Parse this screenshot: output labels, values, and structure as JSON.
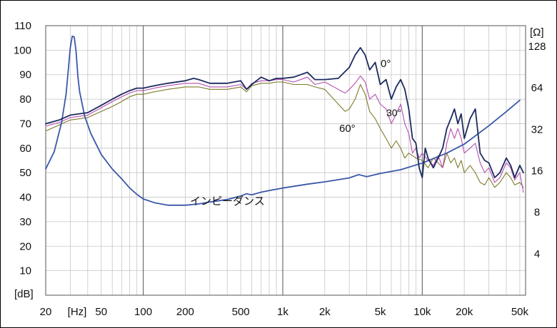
{
  "chart_data": {
    "type": "line",
    "x_axis": {
      "scale": "log",
      "range": [
        20,
        55000
      ],
      "unit": "[Hz]",
      "tick_labels": [
        {
          "value": 20,
          "label": "20"
        },
        {
          "value": 50,
          "label": "50"
        },
        {
          "value": 100,
          "label": "100"
        },
        {
          "value": 200,
          "label": "200"
        },
        {
          "value": 500,
          "label": "500"
        },
        {
          "value": 1000,
          "label": "1k"
        },
        {
          "value": 2000,
          "label": "2k"
        },
        {
          "value": 5000,
          "label": "5k"
        },
        {
          "value": 10000,
          "label": "10k"
        },
        {
          "value": 20000,
          "label": "20k"
        },
        {
          "value": 50000,
          "label": "50k"
        }
      ]
    },
    "y_axis_left": {
      "unit": "[dB]",
      "range": [
        0,
        110
      ],
      "tick_labels": [
        {
          "value": 110,
          "label": "110"
        },
        {
          "value": 100,
          "label": "100"
        },
        {
          "value": 90,
          "label": "90"
        },
        {
          "value": 80,
          "label": "80"
        },
        {
          "value": 70,
          "label": "70"
        },
        {
          "value": 60,
          "label": "60"
        },
        {
          "value": 50,
          "label": "50"
        },
        {
          "value": 40,
          "label": "40"
        },
        {
          "value": 30,
          "label": "30"
        },
        {
          "value": 20,
          "label": "20"
        },
        {
          "value": 10,
          "label": "10"
        }
      ]
    },
    "y_axis_right": {
      "unit": "[Ω]",
      "scale": "log2",
      "range": [
        2,
        181
      ],
      "tick_labels": [
        {
          "value": 128,
          "label": "128"
        },
        {
          "value": 64,
          "label": "64"
        },
        {
          "value": 32,
          "label": "32"
        },
        {
          "value": 16,
          "label": "16"
        },
        {
          "value": 8,
          "label": "8"
        },
        {
          "value": 4,
          "label": "4"
        }
      ]
    },
    "grid": true,
    "annotations": [
      {
        "text": "0°",
        "series": "on_axis"
      },
      {
        "text": "30°",
        "series": "off_axis_30"
      },
      {
        "text": "60°",
        "series": "off_axis_60"
      },
      {
        "text": "インピーダンス",
        "series": "impedance"
      }
    ],
    "series": [
      {
        "key": "on_axis",
        "axis": "left",
        "color": "#1c2a5e",
        "points": [
          [
            20,
            70
          ],
          [
            25,
            71.5
          ],
          [
            30,
            73.5
          ],
          [
            40,
            74.5
          ],
          [
            50,
            77.5
          ],
          [
            60,
            80
          ],
          [
            70,
            82
          ],
          [
            80,
            83.5
          ],
          [
            90,
            84.5
          ],
          [
            100,
            84.5
          ],
          [
            120,
            85.5
          ],
          [
            150,
            86.5
          ],
          [
            200,
            87.5
          ],
          [
            230,
            88.5
          ],
          [
            250,
            88
          ],
          [
            300,
            86.5
          ],
          [
            400,
            86.5
          ],
          [
            500,
            87.5
          ],
          [
            550,
            84
          ],
          [
            600,
            86
          ],
          [
            700,
            89
          ],
          [
            800,
            87.5
          ],
          [
            900,
            88.5
          ],
          [
            1000,
            88.5
          ],
          [
            1200,
            89
          ],
          [
            1500,
            91
          ],
          [
            1700,
            88
          ],
          [
            2000,
            88
          ],
          [
            2500,
            88.5
          ],
          [
            3000,
            93
          ],
          [
            3300,
            98
          ],
          [
            3600,
            101
          ],
          [
            3900,
            98
          ],
          [
            4200,
            92
          ],
          [
            4600,
            95
          ],
          [
            5000,
            86
          ],
          [
            5500,
            88
          ],
          [
            6000,
            80
          ],
          [
            6500,
            85
          ],
          [
            7000,
            88
          ],
          [
            7500,
            84
          ],
          [
            8000,
            76
          ],
          [
            8500,
            64
          ],
          [
            9000,
            62
          ],
          [
            9500,
            52
          ],
          [
            10000,
            48
          ],
          [
            10500,
            60
          ],
          [
            11000,
            56
          ],
          [
            12000,
            52
          ],
          [
            13000,
            56
          ],
          [
            14000,
            60
          ],
          [
            15000,
            68
          ],
          [
            16000,
            72
          ],
          [
            17000,
            76
          ],
          [
            18000,
            70
          ],
          [
            19000,
            74
          ],
          [
            20000,
            64
          ],
          [
            22000,
            72
          ],
          [
            24000,
            76
          ],
          [
            26000,
            58
          ],
          [
            28000,
            55
          ],
          [
            30000,
            54
          ],
          [
            33000,
            48
          ],
          [
            36000,
            50
          ],
          [
            40000,
            56
          ],
          [
            43000,
            53
          ],
          [
            46000,
            48
          ],
          [
            50000,
            53
          ],
          [
            53000,
            50
          ]
        ]
      },
      {
        "key": "off_axis_30",
        "axis": "left",
        "color": "#b44fb0",
        "points": [
          [
            20,
            69
          ],
          [
            25,
            70.5
          ],
          [
            30,
            72.5
          ],
          [
            40,
            73.5
          ],
          [
            50,
            76.5
          ],
          [
            60,
            79
          ],
          [
            70,
            81
          ],
          [
            80,
            82.5
          ],
          [
            90,
            83.5
          ],
          [
            100,
            83.5
          ],
          [
            120,
            84.5
          ],
          [
            150,
            85.5
          ],
          [
            200,
            86.5
          ],
          [
            250,
            86.5
          ],
          [
            300,
            85
          ],
          [
            400,
            85
          ],
          [
            500,
            86
          ],
          [
            550,
            84
          ],
          [
            600,
            86.5
          ],
          [
            700,
            87.5
          ],
          [
            800,
            87.5
          ],
          [
            900,
            88
          ],
          [
            1000,
            88
          ],
          [
            1200,
            87
          ],
          [
            1500,
            89
          ],
          [
            1700,
            86
          ],
          [
            2000,
            87
          ],
          [
            2500,
            84
          ],
          [
            2800,
            82.5
          ],
          [
            3000,
            84
          ],
          [
            3300,
            86.5
          ],
          [
            3600,
            89.5
          ],
          [
            3900,
            87
          ],
          [
            4200,
            80
          ],
          [
            4600,
            82
          ],
          [
            5000,
            78
          ],
          [
            5500,
            76
          ],
          [
            6000,
            70
          ],
          [
            6500,
            74
          ],
          [
            7000,
            78
          ],
          [
            7500,
            70
          ],
          [
            8000,
            66
          ],
          [
            8500,
            58
          ],
          [
            9000,
            60
          ],
          [
            9500,
            56
          ],
          [
            10000,
            58
          ],
          [
            11000,
            55
          ],
          [
            12000,
            53
          ],
          [
            13000,
            57
          ],
          [
            14000,
            52
          ],
          [
            15000,
            62
          ],
          [
            16000,
            68
          ],
          [
            17000,
            64
          ],
          [
            18000,
            68
          ],
          [
            19000,
            64
          ],
          [
            20000,
            58
          ],
          [
            22000,
            60
          ],
          [
            24000,
            62
          ],
          [
            26000,
            54
          ],
          [
            28000,
            50
          ],
          [
            30000,
            52
          ],
          [
            33000,
            46
          ],
          [
            36000,
            48
          ],
          [
            40000,
            54
          ],
          [
            43000,
            52
          ],
          [
            46000,
            47
          ],
          [
            50000,
            50
          ],
          [
            53000,
            42
          ]
        ]
      },
      {
        "key": "off_axis_60",
        "axis": "left",
        "color": "#7f7a2c",
        "points": [
          [
            20,
            67
          ],
          [
            25,
            69.5
          ],
          [
            30,
            71.5
          ],
          [
            40,
            72.5
          ],
          [
            50,
            75
          ],
          [
            60,
            77
          ],
          [
            70,
            79
          ],
          [
            80,
            81
          ],
          [
            90,
            82
          ],
          [
            100,
            82
          ],
          [
            120,
            83
          ],
          [
            150,
            84
          ],
          [
            200,
            85
          ],
          [
            250,
            85
          ],
          [
            300,
            84
          ],
          [
            400,
            84
          ],
          [
            500,
            85
          ],
          [
            550,
            83
          ],
          [
            600,
            85.5
          ],
          [
            700,
            86.5
          ],
          [
            800,
            86.5
          ],
          [
            900,
            87
          ],
          [
            1000,
            87
          ],
          [
            1200,
            86
          ],
          [
            1500,
            86
          ],
          [
            1700,
            85
          ],
          [
            2000,
            84
          ],
          [
            2500,
            78
          ],
          [
            2800,
            75
          ],
          [
            3000,
            76
          ],
          [
            3300,
            80
          ],
          [
            3600,
            86
          ],
          [
            3900,
            82
          ],
          [
            4200,
            75
          ],
          [
            4600,
            72
          ],
          [
            5000,
            68
          ],
          [
            5500,
            64
          ],
          [
            6000,
            60
          ],
          [
            6500,
            63
          ],
          [
            7000,
            60
          ],
          [
            7500,
            56
          ],
          [
            8000,
            58
          ],
          [
            9000,
            56
          ],
          [
            10000,
            55
          ],
          [
            11000,
            52
          ],
          [
            12000,
            56
          ],
          [
            13000,
            54
          ],
          [
            14000,
            52
          ],
          [
            15000,
            58
          ],
          [
            16000,
            54
          ],
          [
            17000,
            56
          ],
          [
            18000,
            52
          ],
          [
            19000,
            55
          ],
          [
            20000,
            50
          ],
          [
            22000,
            53
          ],
          [
            24000,
            50
          ],
          [
            26000,
            46
          ],
          [
            28000,
            45
          ],
          [
            30000,
            48
          ],
          [
            33000,
            44
          ],
          [
            36000,
            46
          ],
          [
            40000,
            50
          ],
          [
            43000,
            48
          ],
          [
            46000,
            45
          ],
          [
            50000,
            46
          ],
          [
            53000,
            44
          ]
        ]
      },
      {
        "key": "impedance",
        "axis": "right",
        "color": "#3a58a8",
        "points": [
          [
            20,
            16.5
          ],
          [
            23,
            22
          ],
          [
            26,
            36
          ],
          [
            28,
            58
          ],
          [
            29,
            85
          ],
          [
            30,
            125
          ],
          [
            31,
            152
          ],
          [
            32,
            150
          ],
          [
            33,
            118
          ],
          [
            34,
            78
          ],
          [
            35,
            60
          ],
          [
            38,
            40
          ],
          [
            42,
            30
          ],
          [
            50,
            21
          ],
          [
            60,
            16.5
          ],
          [
            70,
            14
          ],
          [
            80,
            12
          ],
          [
            90,
            10.8
          ],
          [
            100,
            10
          ],
          [
            120,
            9.4
          ],
          [
            150,
            9
          ],
          [
            200,
            9
          ],
          [
            250,
            9.2
          ],
          [
            300,
            9.5
          ],
          [
            400,
            9.9
          ],
          [
            500,
            10.5
          ],
          [
            550,
            10.9
          ],
          [
            600,
            10.7
          ],
          [
            700,
            11.2
          ],
          [
            800,
            11.5
          ],
          [
            1000,
            12
          ],
          [
            1500,
            12.8
          ],
          [
            2000,
            13.3
          ],
          [
            3000,
            14.2
          ],
          [
            3500,
            15
          ],
          [
            4000,
            14.5
          ],
          [
            5000,
            15.3
          ],
          [
            7000,
            16.3
          ],
          [
            10000,
            18.2
          ],
          [
            15000,
            21.5
          ],
          [
            20000,
            25
          ],
          [
            30000,
            34
          ],
          [
            40000,
            43
          ],
          [
            50000,
            52
          ]
        ]
      }
    ]
  }
}
